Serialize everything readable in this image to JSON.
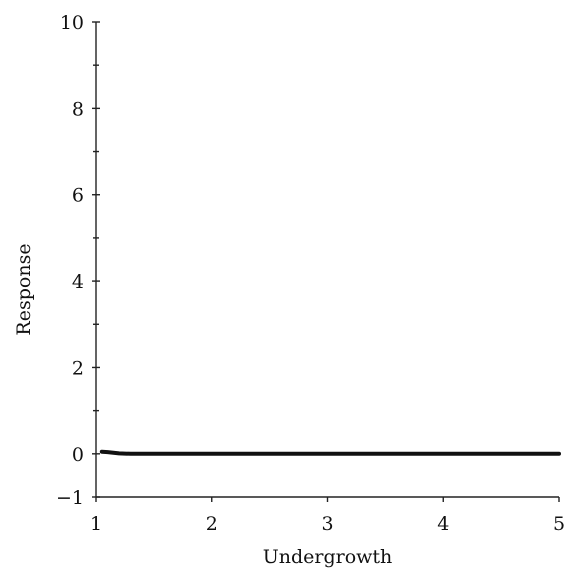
{
  "chart_data": {
    "type": "line",
    "xlabel": "Undergrowth",
    "ylabel": "Response",
    "xlim": [
      1,
      5
    ],
    "ylim": [
      -1,
      10
    ],
    "x_ticks": [
      1,
      2,
      3,
      4,
      5
    ],
    "y_tick_labels": [
      {
        "value": -1,
        "label": "−1"
      },
      {
        "value": 0,
        "label": "0"
      },
      {
        "value": 2,
        "label": "2"
      },
      {
        "value": 4,
        "label": "4"
      },
      {
        "value": 6,
        "label": "6"
      },
      {
        "value": 8,
        "label": "8"
      },
      {
        "value": 10,
        "label": "10"
      }
    ],
    "y_minor_ticks": [
      1,
      3,
      5,
      7,
      9
    ],
    "grid": false,
    "series": [
      {
        "x": [
          1.05,
          1.1,
          1.2,
          1.3,
          1.5,
          2.0,
          2.5,
          3.0,
          3.5,
          4.0,
          4.5,
          5.0
        ],
        "y": [
          0.05,
          0.04,
          0.01,
          0.0,
          0.0,
          0.0,
          0.0,
          0.0,
          0.0,
          0.0,
          0.0,
          0.0
        ]
      }
    ],
    "colors": {
      "line": "#111111",
      "axis": "#222222",
      "text": "#111111"
    }
  }
}
